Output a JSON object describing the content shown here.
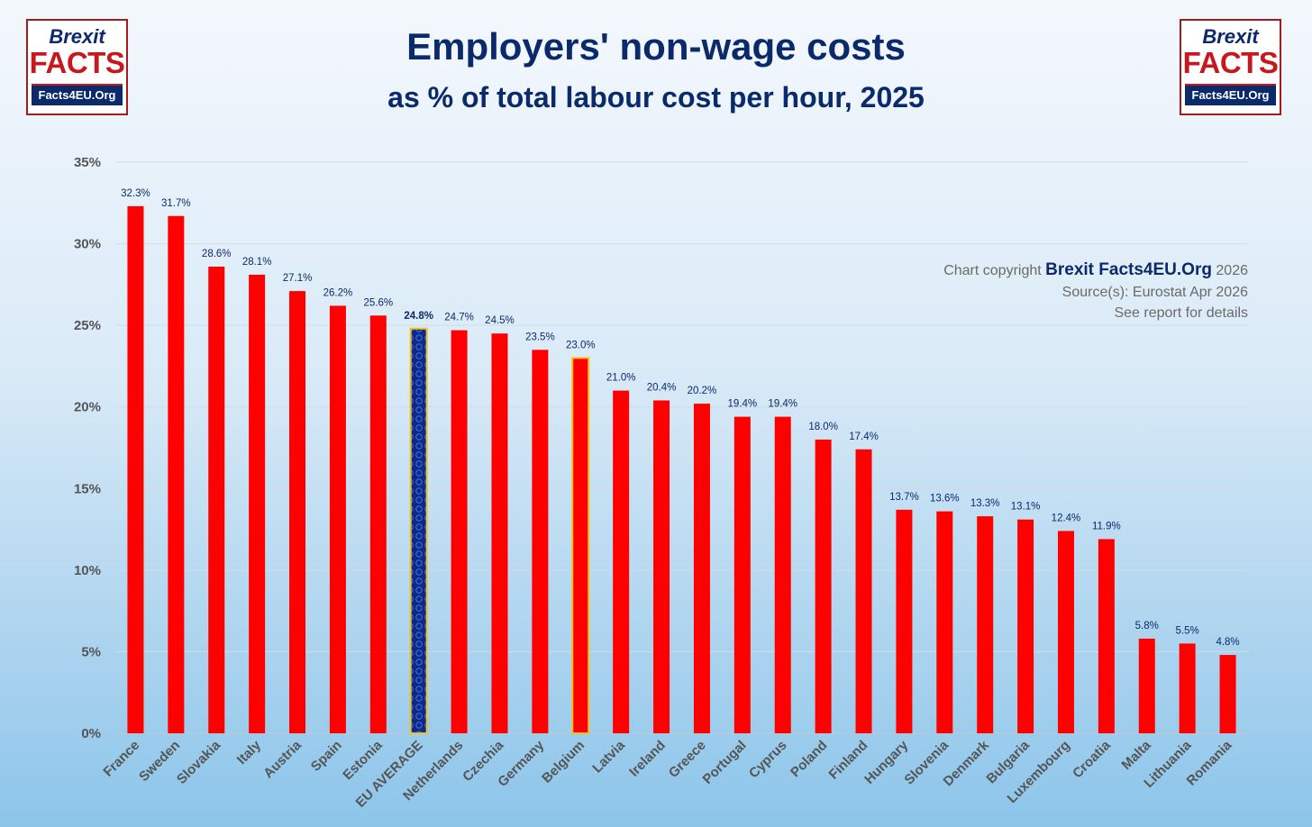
{
  "logos": {
    "line1": "Brexit",
    "line2": "FACTS",
    "line3": "Facts4EU.Org"
  },
  "title": "Employers' non-wage costs",
  "subtitle": "as % of total labour cost per hour, 2025",
  "credit": {
    "prefix": "Chart copyright",
    "brand": "Brexit Facts4EU.Org",
    "year": "2026",
    "source": "Source(s): Eurostat  Apr 2026",
    "note": "See report for details"
  },
  "colors": {
    "bar": "#ff0000",
    "eu_bar": "#0b2a8c",
    "highlight_border": "#f2c21b",
    "label": "#0b2a6b",
    "axis_text": "#555555",
    "grid": "#d0dbe6"
  },
  "chart_data": {
    "type": "bar",
    "title": "Employers' non-wage costs",
    "subtitle": "as % of total labour cost per hour, 2025",
    "xlabel": "",
    "ylabel": "",
    "ylim": [
      0,
      35
    ],
    "yticks": [
      0,
      5,
      10,
      15,
      20,
      25,
      30,
      35
    ],
    "ytick_labels": [
      "0%",
      "5%",
      "10%",
      "15%",
      "20%",
      "25%",
      "30%",
      "35%"
    ],
    "grid": true,
    "categories": [
      "France",
      "Sweden",
      "Slovakia",
      "Italy",
      "Austria",
      "Spain",
      "Estonia",
      "EU AVERAGE",
      "Netherlands",
      "Czechia",
      "Germany",
      "Belgium",
      "Latvia",
      "Ireland",
      "Greece",
      "Portugal",
      "Cyprus",
      "Poland",
      "Finland",
      "Hungary",
      "Slovenia",
      "Denmark",
      "Bulgaria",
      "Luxembourg",
      "Croatia",
      "Malta",
      "Lithuania",
      "Romania"
    ],
    "values": [
      32.3,
      31.7,
      28.6,
      28.1,
      27.1,
      26.2,
      25.6,
      24.8,
      24.7,
      24.5,
      23.5,
      23.0,
      21.0,
      20.4,
      20.2,
      19.4,
      19.4,
      18.0,
      17.4,
      13.7,
      13.6,
      13.3,
      13.1,
      12.4,
      11.9,
      5.8,
      5.5,
      4.8
    ],
    "value_labels": [
      "32.3%",
      "31.7%",
      "28.6%",
      "28.1%",
      "27.1%",
      "26.2%",
      "25.6%",
      "24.8%",
      "24.7%",
      "24.5%",
      "23.5%",
      "23.0%",
      "21.0%",
      "20.4%",
      "20.2%",
      "19.4%",
      "19.4%",
      "18.0%",
      "17.4%",
      "13.7%",
      "13.6%",
      "13.3%",
      "13.1%",
      "12.4%",
      "11.9%",
      "5.8%",
      "5.5%",
      "4.8%"
    ],
    "highlighted": [
      "EU AVERAGE",
      "Belgium"
    ]
  }
}
